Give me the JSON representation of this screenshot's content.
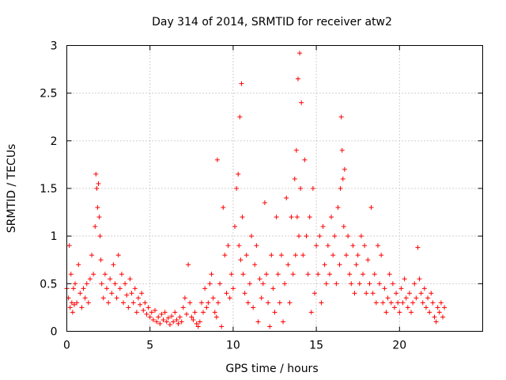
{
  "chart_data": {
    "type": "scatter",
    "title": "Day 314 of 2014, SRMTID for receiver atw2",
    "xlabel": "GPS time / hours",
    "ylabel": "SRMTID / TECUs",
    "xlim": [
      0,
      25
    ],
    "ylim": [
      0,
      3
    ],
    "xticks": [
      0,
      5,
      10,
      15,
      20
    ],
    "yticks": [
      0,
      0.5,
      1,
      1.5,
      2,
      2.5,
      3
    ],
    "ytick_labels": [
      "0",
      "0.5",
      "1",
      "1.5",
      "2",
      "2.5",
      "3"
    ],
    "grid": true,
    "marker": "+",
    "color": "#ff0000",
    "series": [
      {
        "name": "atw2",
        "x": [
          0.0,
          0.1,
          0.15,
          0.2,
          0.25,
          0.3,
          0.35,
          0.4,
          0.45,
          0.5,
          0.6,
          0.7,
          0.8,
          0.9,
          1.0,
          1.1,
          1.2,
          1.3,
          1.4,
          1.5,
          1.6,
          1.7,
          1.75,
          1.8,
          1.85,
          1.9,
          1.95,
          2.0,
          2.05,
          2.1,
          2.2,
          2.3,
          2.4,
          2.5,
          2.6,
          2.7,
          2.8,
          2.9,
          3.0,
          3.1,
          3.2,
          3.3,
          3.4,
          3.5,
          3.6,
          3.7,
          3.8,
          3.9,
          4.0,
          4.1,
          4.2,
          4.3,
          4.4,
          4.5,
          4.6,
          4.7,
          4.8,
          4.9,
          5.0,
          5.1,
          5.2,
          5.3,
          5.4,
          5.5,
          5.6,
          5.7,
          5.8,
          5.9,
          6.0,
          6.1,
          6.2,
          6.3,
          6.4,
          6.5,
          6.6,
          6.7,
          6.8,
          6.9,
          7.0,
          7.1,
          7.2,
          7.3,
          7.4,
          7.5,
          7.6,
          7.7,
          7.8,
          7.9,
          8.0,
          8.1,
          8.2,
          8.3,
          8.4,
          8.5,
          8.6,
          8.7,
          8.8,
          8.9,
          9.0,
          9.05,
          9.1,
          9.2,
          9.3,
          9.4,
          9.5,
          9.6,
          9.7,
          9.8,
          9.9,
          10.0,
          10.1,
          10.2,
          10.3,
          10.35,
          10.4,
          10.45,
          10.5,
          10.55,
          10.6,
          10.7,
          10.8,
          10.9,
          11.0,
          11.1,
          11.2,
          11.3,
          11.4,
          11.5,
          11.6,
          11.7,
          11.8,
          11.9,
          12.0,
          12.1,
          12.2,
          12.3,
          12.4,
          12.5,
          12.6,
          12.7,
          12.8,
          12.9,
          13.0,
          13.1,
          13.2,
          13.3,
          13.4,
          13.5,
          13.6,
          13.7,
          13.75,
          13.8,
          13.85,
          13.9,
          13.95,
          14.0,
          14.05,
          14.1,
          14.2,
          14.3,
          14.4,
          14.5,
          14.6,
          14.7,
          14.8,
          14.9,
          15.0,
          15.1,
          15.2,
          15.3,
          15.4,
          15.5,
          15.6,
          15.7,
          15.8,
          15.9,
          16.0,
          16.1,
          16.2,
          16.3,
          16.4,
          16.45,
          16.5,
          16.55,
          16.6,
          16.65,
          16.7,
          16.8,
          16.9,
          17.0,
          17.1,
          17.2,
          17.3,
          17.4,
          17.5,
          17.6,
          17.7,
          17.8,
          17.9,
          18.0,
          18.1,
          18.2,
          18.3,
          18.4,
          18.5,
          18.6,
          18.7,
          18.8,
          18.9,
          19.0,
          19.1,
          19.2,
          19.3,
          19.4,
          19.5,
          19.6,
          19.7,
          19.8,
          19.9,
          20.0,
          20.1,
          20.2,
          20.3,
          20.4,
          20.5,
          20.6,
          20.7,
          20.8,
          20.9,
          21.0,
          21.1,
          21.2,
          21.3,
          21.4,
          21.5,
          21.6,
          21.7,
          21.8,
          21.9,
          22.0,
          22.1,
          22.2,
          22.3,
          22.4,
          22.5,
          22.6,
          22.7
        ],
        "y": [
          0.45,
          0.35,
          0.9,
          0.25,
          0.6,
          0.3,
          0.2,
          0.45,
          0.28,
          0.5,
          0.3,
          0.7,
          0.4,
          0.25,
          0.45,
          0.35,
          0.5,
          0.3,
          0.55,
          0.8,
          0.6,
          1.1,
          1.65,
          1.5,
          1.3,
          1.55,
          1.2,
          1.0,
          0.75,
          0.5,
          0.35,
          0.6,
          0.45,
          0.3,
          0.55,
          0.4,
          0.7,
          0.5,
          0.35,
          0.8,
          0.45,
          0.6,
          0.3,
          0.5,
          0.38,
          0.25,
          0.55,
          0.4,
          0.3,
          0.45,
          0.2,
          0.35,
          0.28,
          0.4,
          0.22,
          0.3,
          0.18,
          0.25,
          0.15,
          0.2,
          0.12,
          0.22,
          0.1,
          0.15,
          0.08,
          0.18,
          0.12,
          0.2,
          0.1,
          0.14,
          0.07,
          0.16,
          0.1,
          0.2,
          0.12,
          0.08,
          0.15,
          0.1,
          0.25,
          0.35,
          0.18,
          0.7,
          0.3,
          0.15,
          0.12,
          0.2,
          0.08,
          0.05,
          0.1,
          0.3,
          0.2,
          0.45,
          0.25,
          0.3,
          0.5,
          0.6,
          0.35,
          0.2,
          0.15,
          1.8,
          0.3,
          0.5,
          0.05,
          1.3,
          0.8,
          0.4,
          0.9,
          0.35,
          0.6,
          0.45,
          1.1,
          1.5,
          1.65,
          0.9,
          2.25,
          0.75,
          2.6,
          1.2,
          0.6,
          0.4,
          0.8,
          0.3,
          0.5,
          1.0,
          0.25,
          0.7,
          0.9,
          0.1,
          0.55,
          0.35,
          0.5,
          1.35,
          0.6,
          0.3,
          0.05,
          0.8,
          0.45,
          0.2,
          1.2,
          0.6,
          0.3,
          0.8,
          0.1,
          0.5,
          1.4,
          0.7,
          0.3,
          1.2,
          0.6,
          1.6,
          0.8,
          1.9,
          1.2,
          2.65,
          1.0,
          2.92,
          1.5,
          2.4,
          0.8,
          1.8,
          1.0,
          0.6,
          1.2,
          0.2,
          1.5,
          0.4,
          0.9,
          0.6,
          1.0,
          0.3,
          1.1,
          0.7,
          0.5,
          0.9,
          0.6,
          1.2,
          0.8,
          1.0,
          0.5,
          1.3,
          0.7,
          1.5,
          2.25,
          1.9,
          1.6,
          1.1,
          1.7,
          0.8,
          1.0,
          0.6,
          0.5,
          0.9,
          0.4,
          0.7,
          0.8,
          0.5,
          1.0,
          0.6,
          0.9,
          0.4,
          0.75,
          0.5,
          1.3,
          0.4,
          0.6,
          0.3,
          0.9,
          0.5,
          0.8,
          0.3,
          0.45,
          0.2,
          0.35,
          0.6,
          0.3,
          0.5,
          0.25,
          0.4,
          0.3,
          0.2,
          0.45,
          0.3,
          0.55,
          0.35,
          0.25,
          0.4,
          0.2,
          0.3,
          0.5,
          0.35,
          0.88,
          0.55,
          0.4,
          0.3,
          0.45,
          0.25,
          0.35,
          0.2,
          0.4,
          0.3,
          0.15,
          0.1,
          0.25,
          0.2,
          0.3,
          0.15,
          0.25
        ]
      }
    ]
  }
}
